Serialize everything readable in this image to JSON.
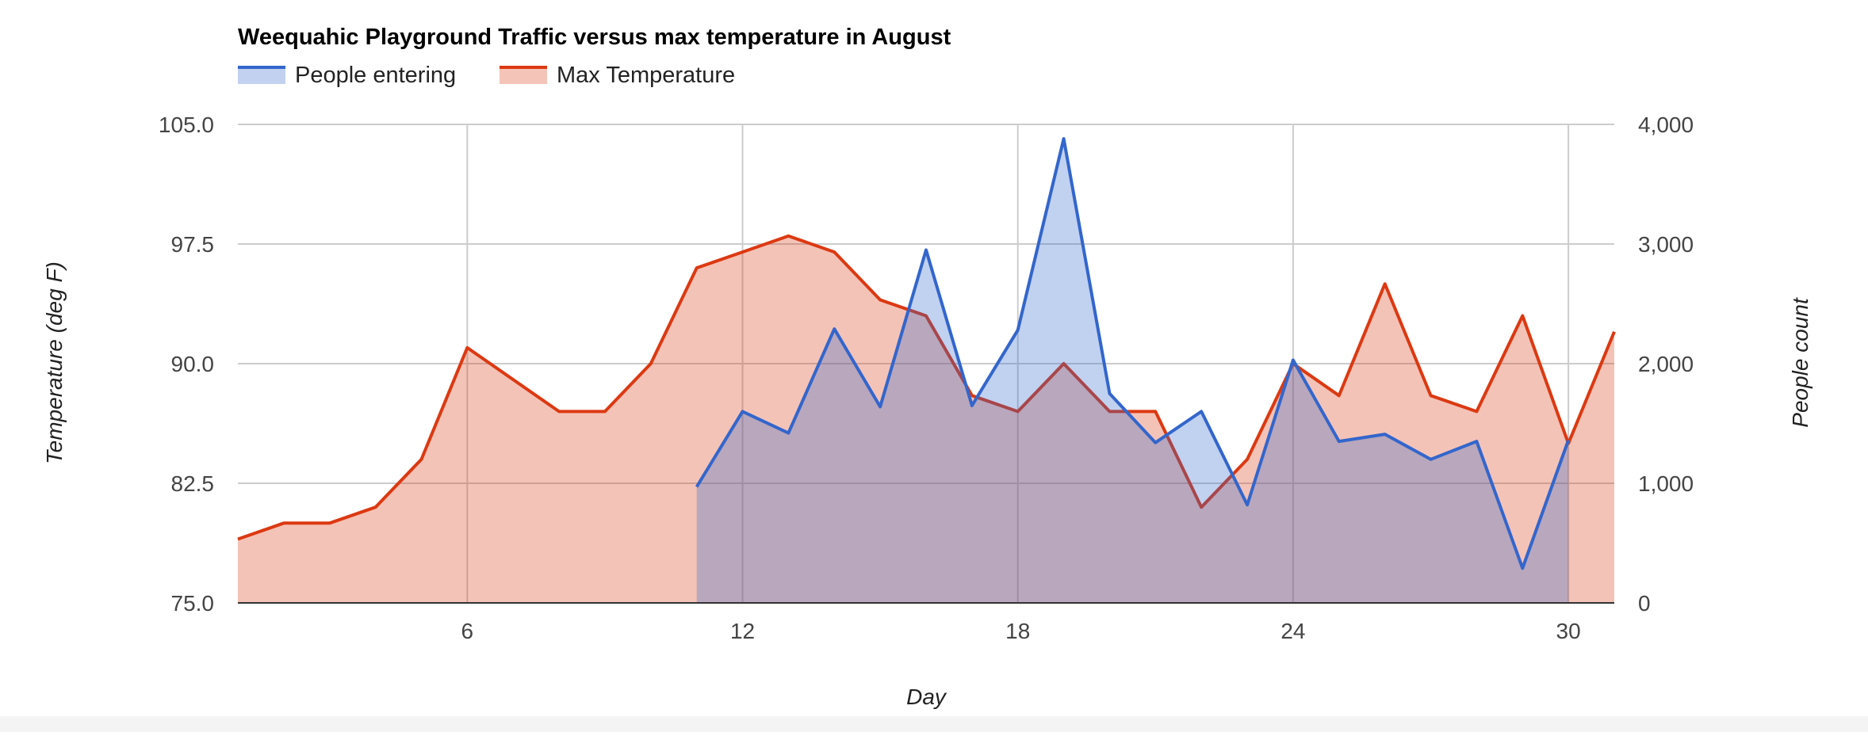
{
  "chart_data": {
    "type": "area",
    "title": "Weequahic Playground Traffic versus max temperature in August",
    "xlabel": "Day",
    "ylabel_left": "Temperature (deg F)",
    "ylabel_right": "People count",
    "x_ticks": [
      "6",
      "12",
      "18",
      "24",
      "30"
    ],
    "y_left_ticks": [
      "75.0",
      "82.5",
      "90.0",
      "97.5",
      "105.0"
    ],
    "y_right_ticks": [
      "0",
      "1,000",
      "2,000",
      "3,000",
      "4,000"
    ],
    "xlim": [
      1,
      31
    ],
    "ylim_left": [
      75,
      105
    ],
    "ylim_right": [
      0,
      4000
    ],
    "grid": true,
    "legend_position": "top-left",
    "series": [
      {
        "name": "People entering",
        "axis": "right",
        "color": "#3366cc",
        "x": [
          11,
          12,
          13,
          14,
          15,
          16,
          17,
          18,
          19,
          20,
          21,
          22,
          23,
          24,
          25,
          26,
          27,
          28,
          29,
          30
        ],
        "values": [
          970,
          1600,
          1420,
          2290,
          1640,
          2950,
          1650,
          2280,
          3880,
          1750,
          1340,
          1600,
          820,
          2030,
          1350,
          1410,
          1200,
          1350,
          290,
          1360
        ]
      },
      {
        "name": "Max Temperature",
        "axis": "left",
        "color": "#dc3912",
        "x": [
          1,
          2,
          3,
          4,
          5,
          6,
          7,
          8,
          9,
          10,
          11,
          12,
          13,
          14,
          15,
          16,
          17,
          18,
          19,
          20,
          21,
          22,
          23,
          24,
          25,
          26,
          27,
          28,
          29,
          30,
          31
        ],
        "values": [
          79,
          80,
          80,
          81,
          84,
          91,
          89,
          87,
          87,
          90,
          96,
          97,
          98,
          97,
          94,
          93,
          88,
          87,
          90,
          87,
          87,
          81,
          84,
          90,
          88,
          95,
          88,
          87,
          93,
          85,
          92
        ]
      }
    ]
  }
}
